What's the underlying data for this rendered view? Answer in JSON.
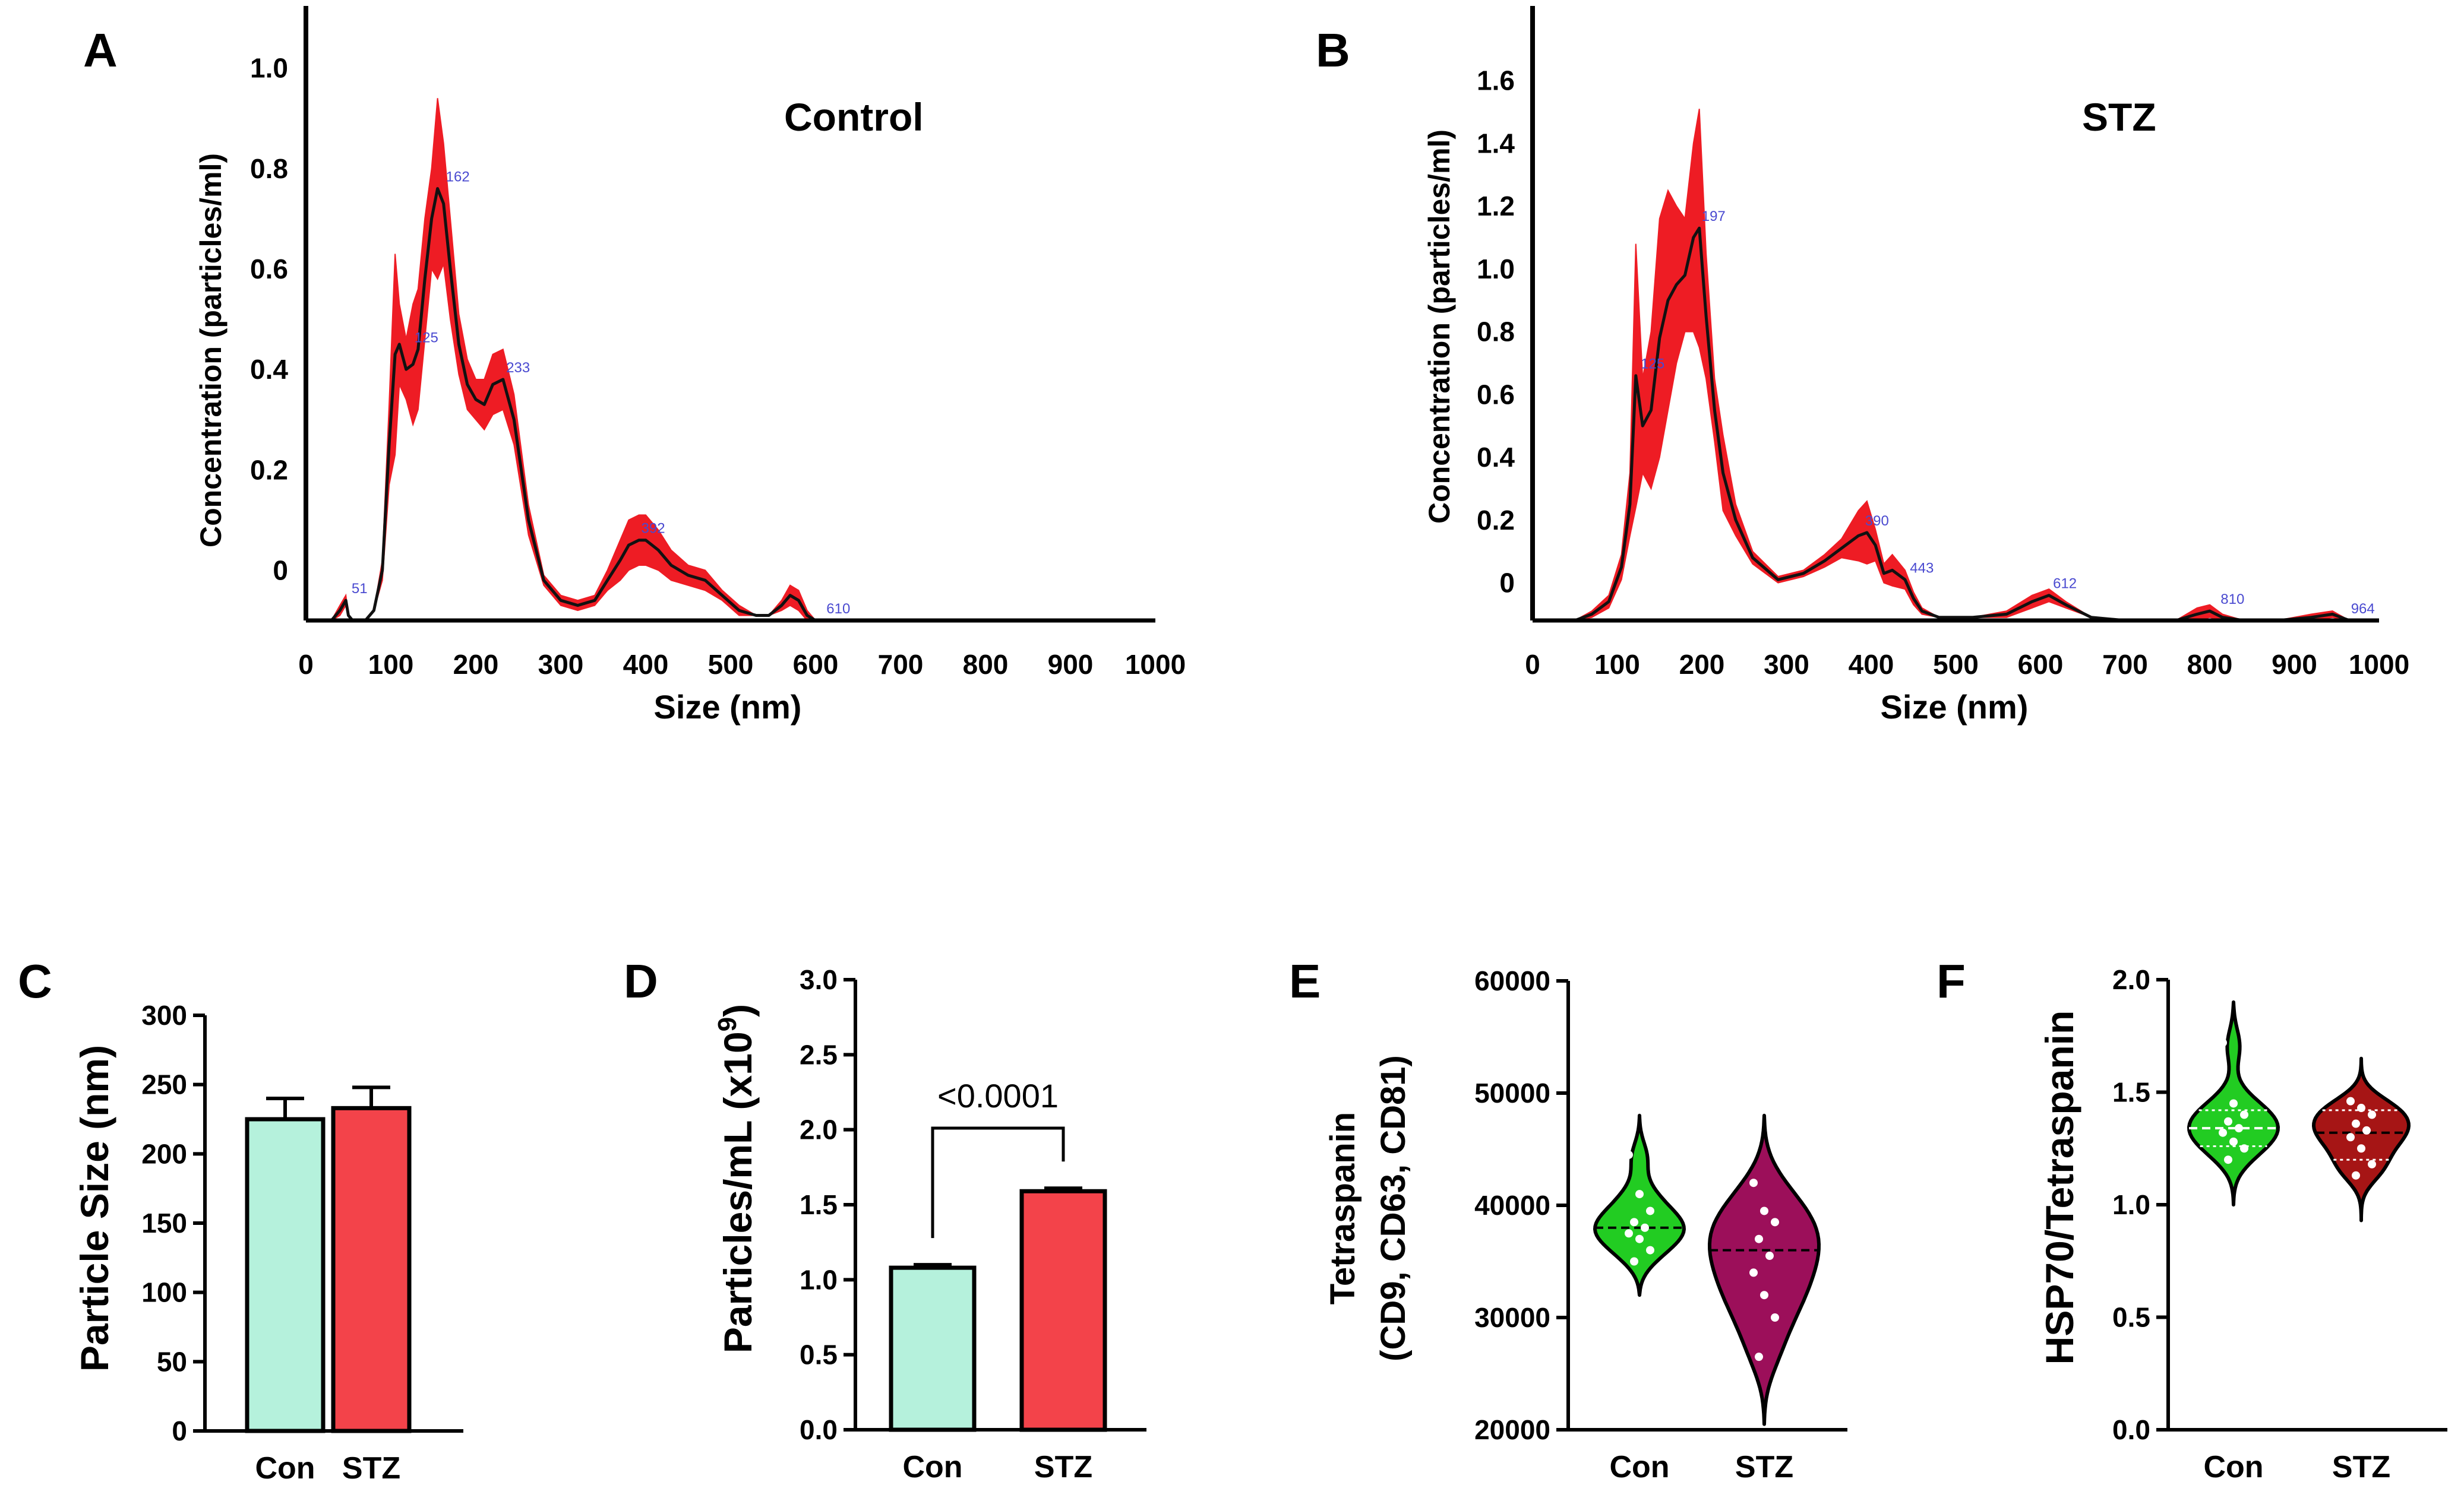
{
  "colors": {
    "axis": "#000000",
    "nta_band": "#ee1c24",
    "nta_line": "#111111",
    "peak_label": "#4a4ad0",
    "con_fill": "#b5f1dc",
    "stz_fill": "#f3434a",
    "con_violin": "#22cc22",
    "stz_violin_e": "#9c0f5a",
    "stz_violin_f": "#a61515",
    "point": "#ffffff"
  },
  "chart_data": [
    {
      "panel": "A",
      "type": "line",
      "title": "Control",
      "xlabel": "Size (nm)",
      "ylabel": "Concentration (particles/ml)",
      "xlim": [
        0,
        1000
      ],
      "ylim": [
        -0.1,
        1.1
      ],
      "xticks": [
        "0",
        "100",
        "200",
        "300",
        "400",
        "500",
        "600",
        "700",
        "800",
        "900",
        "1000"
      ],
      "yticks": [
        "0",
        "0.2",
        "0.4",
        "0.6",
        "0.8",
        "1.0"
      ],
      "series": [
        {
          "name": "mean",
          "x": [
            0,
            30,
            40,
            47,
            50,
            55,
            70,
            80,
            90,
            98,
            105,
            110,
            118,
            126,
            132,
            140,
            148,
            155,
            162,
            170,
            180,
            190,
            200,
            210,
            220,
            232,
            245,
            262,
            280,
            300,
            320,
            340,
            355,
            370,
            380,
            392,
            400,
            415,
            430,
            450,
            470,
            490,
            510,
            530,
            545,
            560,
            570,
            580,
            590,
            600,
            620,
            650,
            700,
            800,
            900,
            1000
          ],
          "y": [
            -0.1,
            -0.1,
            -0.08,
            -0.06,
            -0.09,
            -0.1,
            -0.1,
            -0.08,
            0.0,
            0.25,
            0.43,
            0.45,
            0.4,
            0.41,
            0.44,
            0.58,
            0.7,
            0.76,
            0.73,
            0.6,
            0.45,
            0.37,
            0.34,
            0.33,
            0.37,
            0.38,
            0.3,
            0.1,
            -0.02,
            -0.06,
            -0.07,
            -0.06,
            -0.02,
            0.02,
            0.05,
            0.06,
            0.06,
            0.04,
            0.01,
            -0.01,
            -0.02,
            -0.05,
            -0.08,
            -0.09,
            -0.09,
            -0.07,
            -0.05,
            -0.06,
            -0.09,
            -0.1,
            -0.1,
            -0.1,
            -0.1,
            -0.1,
            -0.1,
            -0.1
          ],
          "band": [
            0,
            0,
            0.01,
            0.01,
            0,
            0,
            0,
            0,
            0.02,
            0.08,
            0.2,
            0.08,
            0.06,
            0.12,
            0.12,
            0.12,
            0.1,
            0.18,
            0.12,
            0.1,
            0.06,
            0.05,
            0.04,
            0.05,
            0.06,
            0.06,
            0.05,
            0.03,
            0.01,
            0.01,
            0.01,
            0.01,
            0.02,
            0.04,
            0.05,
            0.05,
            0.05,
            0.04,
            0.03,
            0.02,
            0.02,
            0.01,
            0.01,
            0,
            0,
            0.01,
            0.02,
            0.02,
            0.01,
            0,
            0,
            0,
            0,
            0,
            0,
            0
          ]
        }
      ],
      "peak_labels": [
        {
          "x": 51,
          "text": "51"
        },
        {
          "x": 125,
          "text": "125"
        },
        {
          "x": 162,
          "text": "162"
        },
        {
          "x": 233,
          "text": "233"
        },
        {
          "x": 392,
          "text": "392"
        },
        {
          "x": 610,
          "text": "610"
        }
      ]
    },
    {
      "panel": "B",
      "type": "line",
      "title": "STZ",
      "xlabel": "Size (nm)",
      "ylabel": "Concentration (particles/ml)",
      "xlim": [
        0,
        1000
      ],
      "ylim": [
        -0.12,
        1.8
      ],
      "xticks": [
        "0",
        "100",
        "200",
        "300",
        "400",
        "500",
        "600",
        "700",
        "800",
        "900",
        "1000"
      ],
      "yticks": [
        "0",
        "0.2",
        "0.4",
        "0.6",
        "0.8",
        "1.0",
        "1.2",
        "1.4",
        "1.6"
      ],
      "series": [
        {
          "name": "mean",
          "x": [
            0,
            50,
            70,
            90,
            105,
            115,
            122,
            130,
            140,
            150,
            160,
            170,
            180,
            190,
            197,
            205,
            215,
            225,
            240,
            260,
            290,
            320,
            345,
            365,
            385,
            395,
            405,
            415,
            425,
            440,
            450,
            460,
            480,
            520,
            560,
            590,
            610,
            630,
            660,
            700,
            760,
            785,
            800,
            815,
            840,
            880,
            920,
            945,
            965,
            1000
          ],
          "y": [
            -0.12,
            -0.12,
            -0.1,
            -0.06,
            0.05,
            0.25,
            0.66,
            0.5,
            0.55,
            0.78,
            0.9,
            0.95,
            0.98,
            1.1,
            1.13,
            0.85,
            0.55,
            0.35,
            0.2,
            0.08,
            0.01,
            0.03,
            0.07,
            0.11,
            0.15,
            0.16,
            0.12,
            0.03,
            0.04,
            0.01,
            -0.05,
            -0.09,
            -0.11,
            -0.11,
            -0.1,
            -0.06,
            -0.04,
            -0.07,
            -0.11,
            -0.12,
            -0.12,
            -0.1,
            -0.09,
            -0.11,
            -0.12,
            -0.12,
            -0.11,
            -0.1,
            -0.12,
            -0.12
          ],
          "band": [
            0,
            0,
            0.01,
            0.02,
            0.04,
            0.1,
            0.42,
            0.15,
            0.25,
            0.38,
            0.35,
            0.25,
            0.18,
            0.3,
            0.38,
            0.2,
            0.1,
            0.12,
            0.05,
            0.02,
            0.01,
            0.01,
            0.02,
            0.03,
            0.08,
            0.1,
            0.05,
            0.03,
            0.05,
            0.03,
            0.02,
            0.01,
            0,
            0,
            0.01,
            0.02,
            0.02,
            0.01,
            0,
            0,
            0,
            0.02,
            0.02,
            0.01,
            0,
            0,
            0.01,
            0.01,
            0,
            0
          ]
        }
      ],
      "peak_labels": [
        {
          "x": 125,
          "text": "125"
        },
        {
          "x": 197,
          "text": "197"
        },
        {
          "x": 390,
          "text": "390"
        },
        {
          "x": 443,
          "text": "443"
        },
        {
          "x": 612,
          "text": "612"
        },
        {
          "x": 810,
          "text": "810"
        },
        {
          "x": 964,
          "text": "964"
        }
      ]
    },
    {
      "panel": "C",
      "type": "bar",
      "ylabel": "Particle Size (nm)",
      "categories": [
        "Con",
        "STZ"
      ],
      "values": [
        225,
        233
      ],
      "errors": [
        15,
        15
      ],
      "ylim": [
        0,
        300
      ],
      "yticks": [
        "0",
        "50",
        "100",
        "150",
        "200",
        "250",
        "300"
      ]
    },
    {
      "panel": "D",
      "type": "bar",
      "ylabel": "Particles/mL (x10",
      "ylabel_sup": "9",
      "ylabel_close": ")",
      "categories": [
        "Con",
        "STZ"
      ],
      "values": [
        1.08,
        1.59
      ],
      "errors": [
        0.02,
        0.02
      ],
      "ylim": [
        0,
        3.0
      ],
      "yticks": [
        "0.0",
        "0.5",
        "1.0",
        "1.5",
        "2.0",
        "2.5",
        "3.0"
      ],
      "annotation": "<0.0001"
    },
    {
      "panel": "E",
      "type": "violin",
      "ylabel": "Tetraspanin",
      "ylabel2": "(CD9, CD63, CD81)",
      "categories": [
        "Con",
        "STZ"
      ],
      "ylim": [
        20000,
        60000
      ],
      "yticks": [
        "20000",
        "30000",
        "40000",
        "50000",
        "60000"
      ],
      "groups": [
        {
          "min": 32000,
          "max": 48000,
          "median": 38000,
          "points": [
            44500,
            41000,
            39500,
            38500,
            38000,
            37500,
            37000,
            36000,
            35000
          ]
        },
        {
          "min": 20500,
          "max": 48000,
          "median": 36000,
          "points": [
            42000,
            39500,
            38500,
            37000,
            35500,
            34000,
            32000,
            30000,
            26500
          ]
        }
      ]
    },
    {
      "panel": "F",
      "type": "violin",
      "ylabel": "HSP70/Tetraspanin",
      "categories": [
        "Con",
        "STZ"
      ],
      "ylim": [
        0.0,
        2.0
      ],
      "yticks": [
        "0.0",
        "0.5",
        "1.0",
        "1.5",
        "2.0"
      ],
      "groups": [
        {
          "min": 1.0,
          "max": 1.9,
          "median": 1.34,
          "q1": 1.26,
          "q3": 1.42,
          "points": [
            1.72,
            1.45,
            1.4,
            1.37,
            1.34,
            1.32,
            1.28,
            1.25,
            1.2
          ]
        },
        {
          "min": 0.93,
          "max": 1.65,
          "median": 1.32,
          "q1": 1.2,
          "q3": 1.42,
          "points": [
            1.46,
            1.43,
            1.4,
            1.36,
            1.33,
            1.3,
            1.25,
            1.18,
            1.13
          ]
        }
      ]
    }
  ],
  "panel_letters": [
    "A",
    "B",
    "C",
    "D",
    "E",
    "F"
  ]
}
